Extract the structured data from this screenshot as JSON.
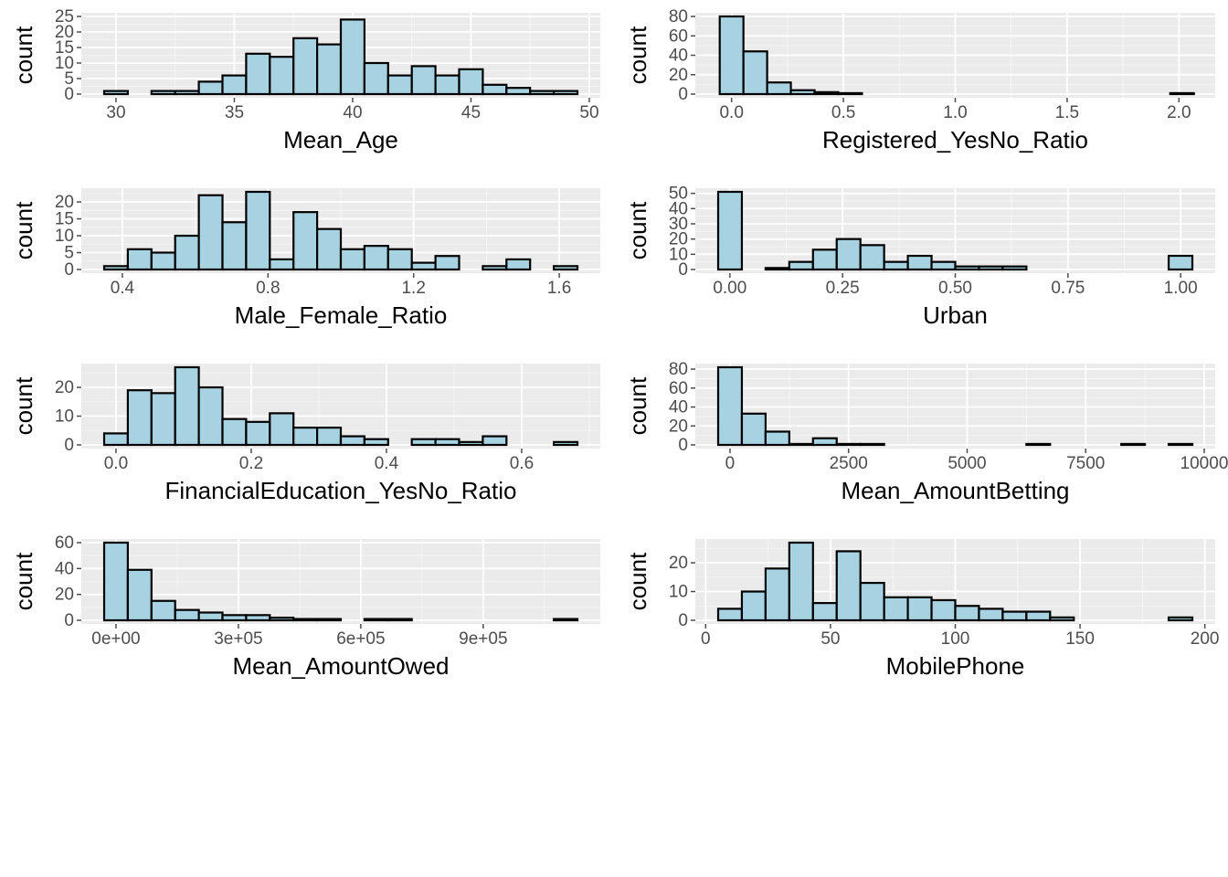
{
  "style": {
    "panel_bg": "#ebebeb",
    "grid_major": "#ffffff",
    "bar_fill": "#a6d2e2",
    "bar_stroke": "#000000",
    "tick_color": "#4d4d4d"
  },
  "chart_data": [
    {
      "type": "bar",
      "subtype": "histogram",
      "xlabel": "Mean_Age",
      "ylabel": "count",
      "xlim": [
        29.5,
        49.5
      ],
      "ylim": [
        0,
        25
      ],
      "xticks": [
        30,
        35,
        40,
        45,
        50
      ],
      "xtick_labels": [
        "30",
        "35",
        "40",
        "45",
        "50"
      ],
      "yticks": [
        0,
        5,
        10,
        15,
        20,
        25
      ],
      "ytick_labels": [
        "0",
        "5",
        "10",
        "15",
        "20",
        "25"
      ],
      "bin_start": 29.5,
      "bin_width": 1,
      "counts": [
        1,
        0,
        1,
        1,
        4,
        6,
        13,
        12,
        18,
        16,
        24,
        10,
        6,
        9,
        6,
        8,
        3,
        2,
        1,
        1
      ]
    },
    {
      "type": "bar",
      "subtype": "histogram",
      "xlabel": "Registered_YesNo_Ratio",
      "ylabel": "count",
      "xlim": [
        -0.06,
        2.06
      ],
      "ylim": [
        0,
        80
      ],
      "xticks": [
        0,
        0.5,
        1,
        1.5,
        2
      ],
      "xtick_labels": [
        "0.0",
        "0.5",
        "1.0",
        "1.5",
        "2.0"
      ],
      "yticks": [
        0,
        20,
        40,
        60,
        80
      ],
      "ytick_labels": [
        "0",
        "20",
        "40",
        "60",
        "80"
      ],
      "bin_start": -0.053,
      "bin_width": 0.106,
      "counts": [
        80,
        44,
        12,
        4,
        2,
        1,
        0,
        0,
        0,
        0,
        0,
        0,
        0,
        0,
        0,
        0,
        0,
        0,
        0,
        1
      ]
    },
    {
      "type": "bar",
      "subtype": "histogram",
      "xlabel": "Male_Female_Ratio",
      "ylabel": "count",
      "xlim": [
        0.35,
        1.65
      ],
      "ylim": [
        0,
        23
      ],
      "xticks": [
        0.4,
        0.8,
        1.2,
        1.6
      ],
      "xtick_labels": [
        "0.4",
        "0.8",
        "1.2",
        "1.6"
      ],
      "yticks": [
        0,
        5,
        10,
        15,
        20
      ],
      "ytick_labels": [
        "0",
        "5",
        "10",
        "15",
        "20"
      ],
      "bin_start": 0.35,
      "bin_width": 0.065,
      "counts": [
        1,
        6,
        5,
        10,
        22,
        14,
        23,
        3,
        17,
        12,
        6,
        7,
        6,
        2,
        4,
        0,
        1,
        3,
        0,
        1
      ]
    },
    {
      "type": "bar",
      "subtype": "histogram",
      "xlabel": "Urban",
      "ylabel": "count",
      "xlim": [
        -0.026,
        1.026
      ],
      "ylim": [
        0,
        51
      ],
      "xticks": [
        0,
        0.25,
        0.5,
        0.75,
        1
      ],
      "xtick_labels": [
        "0.00",
        "0.25",
        "0.50",
        "0.75",
        "1.00"
      ],
      "yticks": [
        0,
        10,
        20,
        30,
        40,
        50
      ],
      "ytick_labels": [
        "0",
        "10",
        "20",
        "30",
        "40",
        "50"
      ],
      "bin_start": -0.026,
      "bin_width": 0.0526,
      "counts": [
        51,
        0,
        1,
        5,
        13,
        20,
        16,
        5,
        9,
        5,
        2,
        2,
        2,
        0,
        0,
        0,
        0,
        0,
        0,
        9
      ]
    },
    {
      "type": "bar",
      "subtype": "histogram",
      "xlabel": "FinancialEducation_YesNo_Ratio",
      "ylabel": "count",
      "xlim": [
        -0.0175,
        0.6825
      ],
      "ylim": [
        0,
        27
      ],
      "xticks": [
        0,
        0.2,
        0.4,
        0.6
      ],
      "xtick_labels": [
        "0.0",
        "0.2",
        "0.4",
        "0.6"
      ],
      "yticks": [
        0,
        10,
        20
      ],
      "ytick_labels": [
        "0",
        "10",
        "20"
      ],
      "bin_start": -0.0175,
      "bin_width": 0.035,
      "counts": [
        4,
        19,
        18,
        27,
        20,
        9,
        8,
        11,
        6,
        6,
        3,
        2,
        0,
        2,
        2,
        1,
        3,
        0,
        0,
        1
      ]
    },
    {
      "type": "bar",
      "subtype": "histogram",
      "xlabel": "Mean_AmountBetting",
      "ylabel": "count",
      "xlim": [
        -250,
        9750
      ],
      "ylim": [
        0,
        82
      ],
      "xticks": [
        0,
        2500,
        5000,
        7500,
        10000
      ],
      "xtick_labels": [
        "0",
        "2500",
        "5000",
        "7500",
        "10000"
      ],
      "yticks": [
        0,
        20,
        40,
        60,
        80
      ],
      "ytick_labels": [
        "0",
        "20",
        "40",
        "60",
        "80"
      ],
      "bin_start": -250,
      "bin_width": 500,
      "counts": [
        82,
        33,
        14,
        1,
        7,
        1,
        1,
        0,
        0,
        0,
        0,
        0,
        0,
        1,
        0,
        0,
        0,
        1,
        0,
        1
      ]
    },
    {
      "type": "bar",
      "subtype": "histogram",
      "xlabel": "Mean_AmountOwed",
      "ylabel": "count",
      "xlim": [
        -29000,
        1131000
      ],
      "ylim": [
        0,
        60
      ],
      "xticks": [
        0,
        300000,
        600000,
        900000
      ],
      "xtick_labels": [
        "0e+00",
        "3e+05",
        "6e+05",
        "9e+05"
      ],
      "yticks": [
        0,
        20,
        40,
        60
      ],
      "ytick_labels": [
        "0",
        "20",
        "40",
        "60"
      ],
      "bin_start": -29000,
      "bin_width": 58000,
      "counts": [
        60,
        39,
        15,
        8,
        6,
        4,
        4,
        2,
        1,
        1,
        0,
        1,
        1,
        0,
        0,
        0,
        0,
        0,
        0,
        1
      ]
    },
    {
      "type": "bar",
      "subtype": "histogram",
      "xlabel": "MobilePhone",
      "ylabel": "count",
      "xlim": [
        5,
        195
      ],
      "ylim": [
        0,
        27
      ],
      "xticks": [
        0,
        50,
        100,
        150,
        200
      ],
      "xtick_labels": [
        "0",
        "50",
        "100",
        "150",
        "200"
      ],
      "yticks": [
        0,
        10,
        20
      ],
      "ytick_labels": [
        "0",
        "10",
        "20"
      ],
      "bin_start": 5,
      "bin_width": 9.5,
      "counts": [
        4,
        10,
        18,
        27,
        6,
        24,
        13,
        8,
        8,
        7,
        5,
        4,
        3,
        3,
        1,
        0,
        0,
        0,
        0,
        1
      ]
    }
  ]
}
